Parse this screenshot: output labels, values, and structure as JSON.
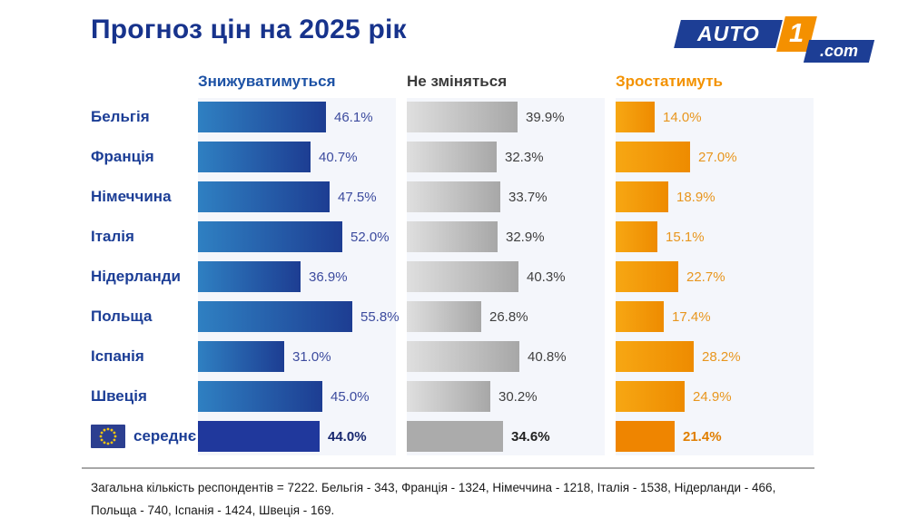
{
  "title": "Прогноз цін на 2025 рік",
  "logo": {
    "auto": "AUTO",
    "one": "1",
    "com": ".com"
  },
  "columns": [
    {
      "key": "decrease",
      "label": "Знижуватимуться",
      "color": "#1d52a5"
    },
    {
      "key": "same",
      "label": "Не зміняться",
      "color": "#3a3a3a"
    },
    {
      "key": "increase",
      "label": "Зростатимуть",
      "color": "#f39200"
    }
  ],
  "chart_data": {
    "type": "bar",
    "orientation": "horizontal",
    "unit": "%",
    "title": "Прогноз цін на 2025 рік",
    "categories": [
      "Бельгія",
      "Франція",
      "Німеччина",
      "Італія",
      "Нідерланди",
      "Польща",
      "Іспанія",
      "Швеція",
      "середнє"
    ],
    "average_category": "середнє",
    "xlim": [
      0,
      71
    ],
    "grid": false,
    "series": [
      {
        "name": "Знижуватимуться",
        "values": [
          46.1,
          40.7,
          47.5,
          52.0,
          36.9,
          55.8,
          31.0,
          45.0,
          44.0
        ],
        "labels": [
          "46.1%",
          "40.7%",
          "47.5%",
          "52.0%",
          "36.9%",
          "55.8%",
          "31.0%",
          "45.0%",
          "44.0%"
        ]
      },
      {
        "name": "Не зміняться",
        "values": [
          39.9,
          32.3,
          33.7,
          32.9,
          40.3,
          26.8,
          40.8,
          30.2,
          34.6
        ],
        "labels": [
          "39.9%",
          "32.3%",
          "33.7%",
          "32.9%",
          "40.3%",
          "26.8%",
          "40.8%",
          "30.2%",
          "34.6%"
        ]
      },
      {
        "name": "Зростатимуть",
        "values": [
          14.0,
          27.0,
          18.9,
          15.1,
          22.7,
          17.4,
          28.2,
          24.9,
          21.4
        ],
        "labels": [
          "14.0%",
          "27.0%",
          "18.9%",
          "15.1%",
          "22.7%",
          "17.4%",
          "28.2%",
          "24.9%",
          "21.4%"
        ]
      }
    ]
  },
  "colors": {
    "title": "#17338c",
    "panel_bg": "#f4f6fb",
    "blue_bar_from": "#2f80c2",
    "blue_bar_to": "#1d3d92",
    "blue_bar_avg": "#20389c",
    "gray_bar_from": "#dfdfdf",
    "gray_bar_to": "#a7a7a7",
    "gray_bar_avg": "#ababab",
    "orange_bar_from": "#f7a713",
    "orange_bar_to": "#ee8b00",
    "orange_bar_avg": "#ef8500",
    "logo_blue": "#1d3e95",
    "logo_orange": "#f49000",
    "eu_flag_blue": "#2c3f90",
    "eu_flag_stars": "#f2c40f"
  },
  "footer": {
    "line1": "Загальна кількість респондентів = 7222. Бельгія - 343, Франція - 1324, Німеччина - 1218, Італія - 1538, Нідерланди - 466,",
    "line2": "Польща - 740, Іспанія - 1424, Швеція - 169."
  }
}
